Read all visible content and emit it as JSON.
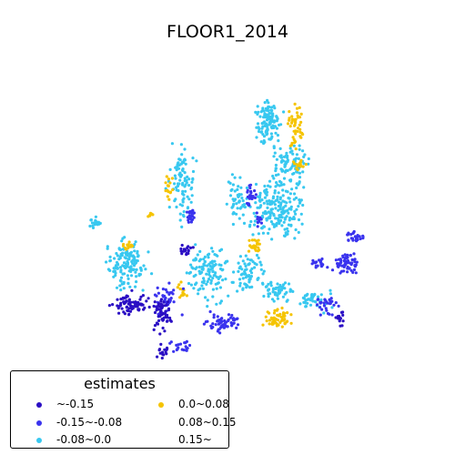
{
  "title": "FLOOR1_2014",
  "legend": {
    "title": "estimates",
    "items": [
      {
        "label": "~-0.15",
        "color": "#2b0fc4"
      },
      {
        "label": "-0.15~-0.08",
        "color": "#3a33ee"
      },
      {
        "label": "-0.08~0.0",
        "color": "#38c8f0"
      },
      {
        "label": "0.0~0.08",
        "color": "#f5c400"
      },
      {
        "label": "0.08~0.15",
        "color": ""
      },
      {
        "label": "0.15~",
        "color": ""
      }
    ]
  }
}
